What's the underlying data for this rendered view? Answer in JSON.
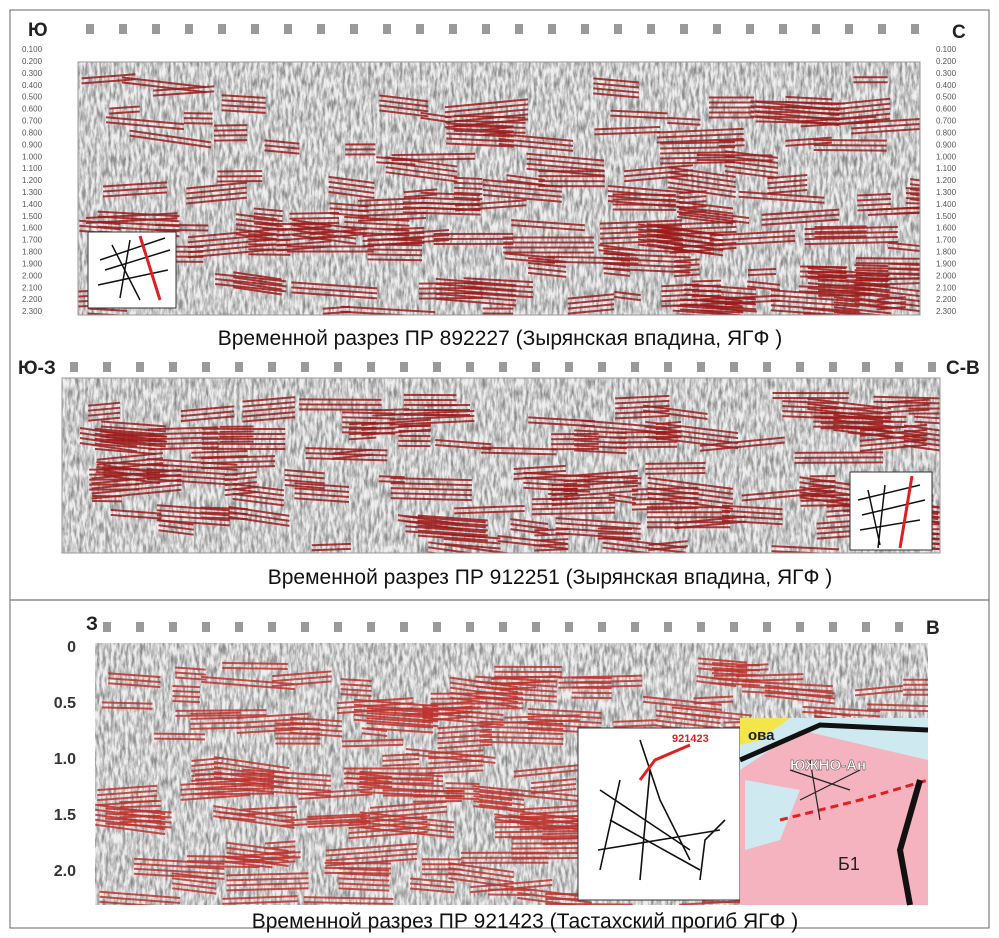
{
  "panels": [
    {
      "left_label": "Ю",
      "right_label": "С",
      "caption": "Временной разрез  ПР 892227 (Зырянская впадина, ЯГФ )",
      "time_labels": [
        "0.100",
        "0.200",
        "0.300",
        "0.400",
        "0.500",
        "0.600",
        "0.700",
        "0.800",
        "0.900",
        "1.000",
        "1.100",
        "1.200",
        "1.300",
        "1.400",
        "1.500",
        "1.600",
        "1.700",
        "1.800",
        "1.900",
        "2.000",
        "2.100",
        "2.200",
        "2.300"
      ]
    },
    {
      "left_label": "Ю-З",
      "right_label": "С-В",
      "caption": "Временной разрез  ПР 912251 (Зырянская впадина, ЯГФ )"
    },
    {
      "left_label": "З",
      "right_label": "В",
      "caption": "Временной разрез  ПР  921423 (Тастахский прогиб  ЯГФ )",
      "time_labels": [
        "0",
        "0.5",
        "1.0",
        "1.5",
        "2.0"
      ],
      "inset_label": "921423",
      "map_labels": [
        "ова",
        "ЮЖНО-Ан",
        "Б1"
      ]
    }
  ]
}
